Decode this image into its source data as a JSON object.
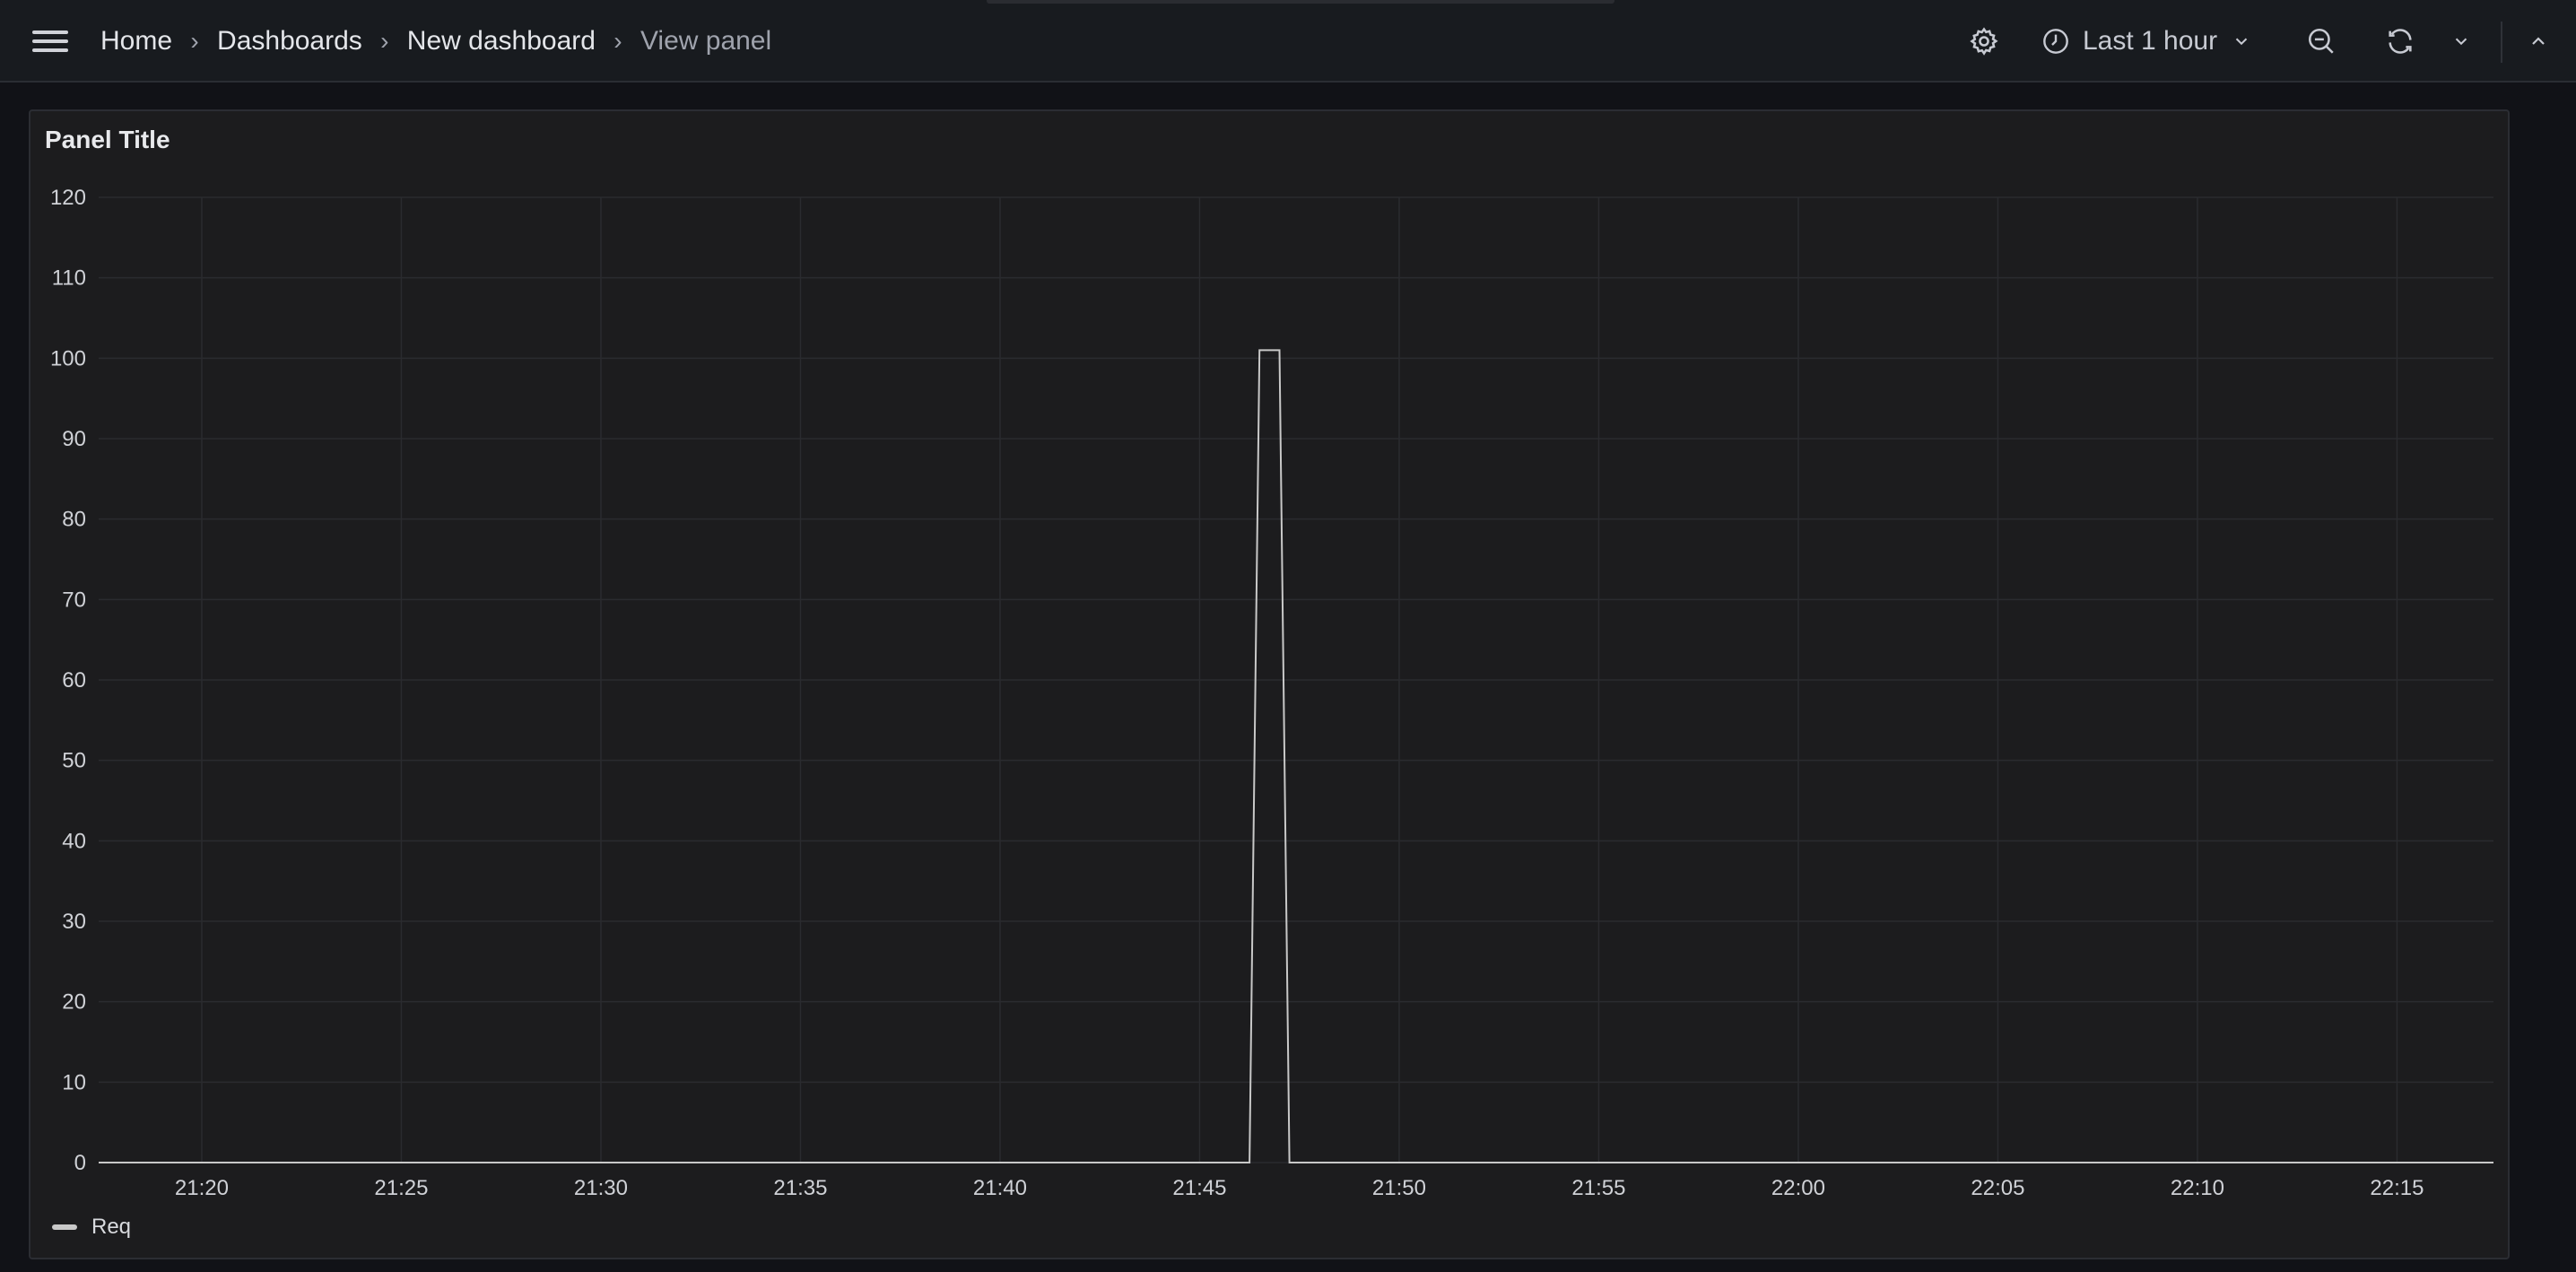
{
  "breadcrumb": {
    "items": [
      "Home",
      "Dashboards",
      "New dashboard"
    ],
    "current": "View panel"
  },
  "toolbar": {
    "time_range": "Last 1 hour",
    "icons": [
      "gear-icon",
      "clock-icon",
      "chevron-down-icon",
      "zoom-out-icon",
      "refresh-icon",
      "chevron-down-icon",
      "chevron-up-icon"
    ]
  },
  "panel": {
    "title": "Panel Title"
  },
  "colors": {
    "series": "#c8c8c8",
    "panel_bg": "#1c1c1e",
    "topbar_bg": "#181b1f"
  },
  "chart_data": {
    "type": "line",
    "title": "Panel Title",
    "xlabel": "",
    "ylabel": "",
    "ylim": [
      0,
      120
    ],
    "y_ticks": [
      "0",
      "10",
      "20",
      "30",
      "40",
      "50",
      "60",
      "70",
      "80",
      "90",
      "100",
      "110",
      "120"
    ],
    "x_ticks": [
      "21:20",
      "21:25",
      "21:30",
      "21:35",
      "21:40",
      "21:45",
      "21:50",
      "21:55",
      "22:00",
      "22:05",
      "22:10",
      "22:15"
    ],
    "xlim": [
      "21:17:25",
      "22:17:25"
    ],
    "grid": true,
    "legend": "bottom-left",
    "series": [
      {
        "name": "Req",
        "x": [
          "21:17:25",
          "21:46:15",
          "21:46:30",
          "21:47:00",
          "21:47:15",
          "22:17:25"
        ],
        "values": [
          0,
          0,
          101,
          101,
          0,
          0
        ]
      }
    ]
  }
}
